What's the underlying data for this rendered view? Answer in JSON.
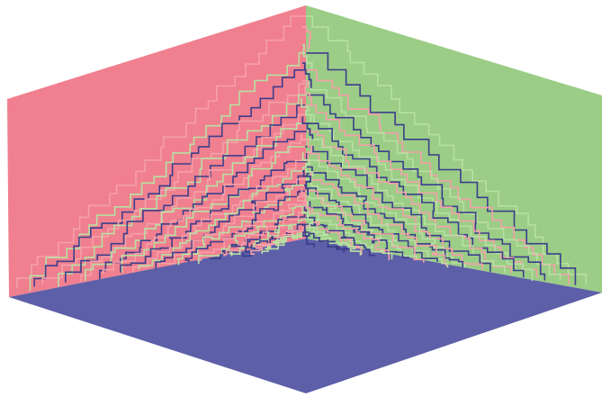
{
  "colors": {
    "background": "#ffffff",
    "left_wall": "#f0808f",
    "right_wall": "#9bcd86",
    "floor": "#5d5fa8",
    "boundary_blue": "#3c3e8c",
    "boundary_pink": "#f5a0aa",
    "boundary_green": "#b8e0a3"
  },
  "scene": {
    "kind": "stepped rhombus-tiling surface in a corner",
    "faces": [
      "left-wall",
      "right-wall",
      "floor"
    ]
  }
}
